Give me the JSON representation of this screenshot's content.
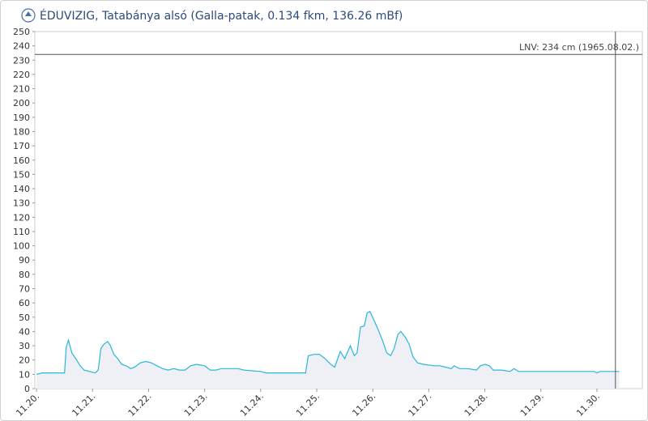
{
  "chart_data": {
    "type": "line",
    "title": "ÉDUVIZIG, Tatabánya alsó (Galla-patak, 0.134 fkm, 136.26 mBf)",
    "x": [
      0,
      0.1,
      0.5,
      0.53,
      0.57,
      0.63,
      0.7,
      0.78,
      0.85,
      0.95,
      1.05,
      1.1,
      1.15,
      1.2,
      1.27,
      1.32,
      1.38,
      1.45,
      1.52,
      1.6,
      1.68,
      1.75,
      1.85,
      1.95,
      2.05,
      2.15,
      2.25,
      2.35,
      2.45,
      2.55,
      2.65,
      2.75,
      2.85,
      3.0,
      3.1,
      3.2,
      3.3,
      3.6,
      3.7,
      4.0,
      4.1,
      4.8,
      4.85,
      4.95,
      5.05,
      5.15,
      5.25,
      5.32,
      5.42,
      5.5,
      5.6,
      5.67,
      5.72,
      5.78,
      5.85,
      5.9,
      5.95,
      6.02,
      6.1,
      6.18,
      6.25,
      6.32,
      6.38,
      6.45,
      6.5,
      6.58,
      6.65,
      6.72,
      6.8,
      6.9,
      7.1,
      7.2,
      7.3,
      7.4,
      7.45,
      7.55,
      7.7,
      7.85,
      7.92,
      8.0,
      8.08,
      8.15,
      8.3,
      8.45,
      8.52,
      8.6,
      9.0,
      9.5,
      9.95,
      10.0,
      10.05,
      10.4
    ],
    "series": [
      {
        "color": "#29b6d9",
        "fill": "#eef0f6",
        "values": [
          10,
          11,
          11,
          29,
          34,
          25,
          21,
          16,
          13,
          12,
          11,
          13,
          28,
          31,
          33,
          30,
          24,
          21,
          17,
          16,
          14,
          15,
          18,
          19,
          18,
          16,
          14,
          13,
          14,
          13,
          13,
          16,
          17,
          16,
          13,
          13,
          14,
          14,
          13,
          12,
          11,
          11,
          23,
          24,
          24,
          21,
          17,
          15,
          26,
          21,
          30,
          23,
          25,
          43,
          44,
          53,
          54,
          48,
          41,
          33,
          25,
          23,
          28,
          38,
          40,
          36,
          31,
          22,
          18,
          17,
          16,
          16,
          15,
          14,
          16,
          14,
          14,
          13,
          16,
          17,
          16,
          13,
          13,
          12,
          14,
          12,
          12,
          12,
          12,
          11,
          12,
          12
        ]
      }
    ],
    "xlim": [
      -0.03,
      10.81
    ],
    "xticks": [
      {
        "value": 0,
        "label": "11.20."
      },
      {
        "value": 1,
        "label": "11.21."
      },
      {
        "value": 2,
        "label": "11.22."
      },
      {
        "value": 3,
        "label": "11.23."
      },
      {
        "value": 4,
        "label": "11.24."
      },
      {
        "value": 5,
        "label": "11.25."
      },
      {
        "value": 6,
        "label": "11.26."
      },
      {
        "value": 7,
        "label": "11.27."
      },
      {
        "value": 8,
        "label": "11.28."
      },
      {
        "value": 9,
        "label": "11.29."
      },
      {
        "value": 10,
        "label": "11.30."
      }
    ],
    "ylim": [
      0,
      250
    ],
    "yticks": [
      0,
      10,
      20,
      30,
      40,
      50,
      60,
      70,
      80,
      90,
      100,
      110,
      120,
      130,
      140,
      150,
      160,
      170,
      180,
      190,
      200,
      210,
      220,
      230,
      240,
      250
    ],
    "reference_line": {
      "value": 234,
      "label": "LNV: 234 cm (1965.08.02.)"
    },
    "marker_x": 10.33
  }
}
